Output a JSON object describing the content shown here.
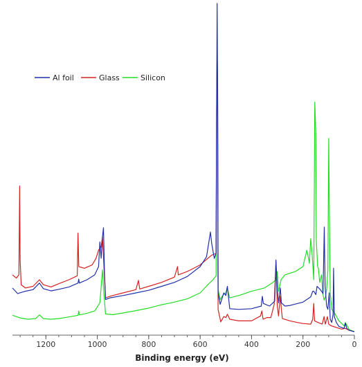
{
  "chart_data": {
    "type": "line",
    "title": "",
    "xlabel": "Binding energy (eV)",
    "ylabel": "",
    "x_reversed": true,
    "xlim": [
      1330,
      0
    ],
    "ylim": [
      0,
      1000
    ],
    "x_ticks": [
      1200,
      1000,
      800,
      600,
      400,
      200,
      0
    ],
    "x_tick_labels": [
      "1200",
      "1000",
      "800",
      "600",
      "400",
      "200",
      "0"
    ],
    "grid": false,
    "legend_position": "top-left",
    "legend": [
      {
        "name": "Al foil",
        "color": "#1f2fa8"
      },
      {
        "name": "Glass",
        "color": "#d62020"
      },
      {
        "name": "Silicon",
        "color": "#22dd22"
      }
    ],
    "series": [
      {
        "name": "Silicon",
        "color": "#22dd22",
        "points": [
          [
            1330,
            52
          ],
          [
            1300,
            44
          ],
          [
            1270,
            40
          ],
          [
            1240,
            42
          ],
          [
            1225,
            53
          ],
          [
            1210,
            42
          ],
          [
            1180,
            40
          ],
          [
            1150,
            42
          ],
          [
            1110,
            47
          ],
          [
            1075,
            52
          ],
          [
            1072,
            65
          ],
          [
            1070,
            53
          ],
          [
            1040,
            58
          ],
          [
            1010,
            65
          ],
          [
            990,
            90
          ],
          [
            980,
            190
          ],
          [
            975,
            125
          ],
          [
            968,
            56
          ],
          [
            940,
            54
          ],
          [
            900,
            59
          ],
          [
            850,
            66
          ],
          [
            800,
            74
          ],
          [
            750,
            84
          ],
          [
            700,
            92
          ],
          [
            650,
            102
          ],
          [
            600,
            120
          ],
          [
            570,
            145
          ],
          [
            550,
            160
          ],
          [
            538,
            172
          ],
          [
            536,
            650
          ],
          [
            534,
            855
          ],
          [
            532,
            760
          ],
          [
            530,
            130
          ],
          [
            522,
            100
          ],
          [
            510,
            115
          ],
          [
            500,
            120
          ],
          [
            495,
            135
          ],
          [
            485,
            105
          ],
          [
            450,
            112
          ],
          [
            400,
            125
          ],
          [
            350,
            135
          ],
          [
            320,
            150
          ],
          [
            305,
            160
          ],
          [
            300,
            185
          ],
          [
            295,
            125
          ],
          [
            285,
            160
          ],
          [
            270,
            175
          ],
          [
            230,
            185
          ],
          [
            200,
            200
          ],
          [
            185,
            250
          ],
          [
            180,
            232
          ],
          [
            175,
            210
          ],
          [
            170,
            285
          ],
          [
            165,
            245
          ],
          [
            158,
            160
          ],
          [
            154,
            700
          ],
          [
            150,
            600
          ],
          [
            148,
            280
          ],
          [
            143,
            200
          ],
          [
            140,
            195
          ],
          [
            135,
            152
          ],
          [
            128,
            175
          ],
          [
            123,
            120
          ],
          [
            118,
            98
          ],
          [
            112,
            110
          ],
          [
            108,
            130
          ],
          [
            103,
            190
          ],
          [
            100,
            590
          ],
          [
            98,
            420
          ],
          [
            94,
            120
          ],
          [
            88,
            70
          ],
          [
            78,
            60
          ],
          [
            60,
            35
          ],
          [
            40,
            20
          ],
          [
            35,
            30
          ],
          [
            20,
            8
          ],
          [
            5,
            4
          ],
          [
            0,
            3
          ]
        ]
      },
      {
        "name": "Glass",
        "color": "#d62020",
        "points": [
          [
            1330,
            175
          ],
          [
            1315,
            165
          ],
          [
            1305,
            175
          ],
          [
            1302,
            445
          ],
          [
            1300,
            220
          ],
          [
            1296,
            145
          ],
          [
            1280,
            135
          ],
          [
            1250,
            140
          ],
          [
            1225,
            160
          ],
          [
            1210,
            145
          ],
          [
            1180,
            138
          ],
          [
            1150,
            148
          ],
          [
            1110,
            160
          ],
          [
            1078,
            172
          ],
          [
            1075,
            302
          ],
          [
            1072,
            200
          ],
          [
            1050,
            195
          ],
          [
            1020,
            205
          ],
          [
            1005,
            225
          ],
          [
            995,
            250
          ],
          [
            985,
            260
          ],
          [
            980,
            290
          ],
          [
            975,
            210
          ],
          [
            968,
            105
          ],
          [
            950,
            110
          ],
          [
            900,
            120
          ],
          [
            850,
            130
          ],
          [
            840,
            158
          ],
          [
            835,
            132
          ],
          [
            800,
            140
          ],
          [
            750,
            152
          ],
          [
            700,
            168
          ],
          [
            688,
            200
          ],
          [
            685,
            175
          ],
          [
            650,
            185
          ],
          [
            600,
            205
          ],
          [
            570,
            225
          ],
          [
            555,
            235
          ],
          [
            538,
            240
          ],
          [
            536,
            650
          ],
          [
            534,
            855
          ],
          [
            532,
            740
          ],
          [
            530,
            70
          ],
          [
            520,
            32
          ],
          [
            508,
            48
          ],
          [
            500,
            45
          ],
          [
            494,
            55
          ],
          [
            485,
            40
          ],
          [
            450,
            35
          ],
          [
            400,
            35
          ],
          [
            365,
            50
          ],
          [
            360,
            65
          ],
          [
            355,
            40
          ],
          [
            340,
            45
          ],
          [
            325,
            45
          ],
          [
            312,
            85
          ],
          [
            305,
            215
          ],
          [
            300,
            80
          ],
          [
            295,
            50
          ],
          [
            288,
            110
          ],
          [
            284,
            70
          ],
          [
            280,
            42
          ],
          [
            250,
            35
          ],
          [
            220,
            30
          ],
          [
            200,
            27
          ],
          [
            170,
            25
          ],
          [
            162,
            40
          ],
          [
            158,
            88
          ],
          [
            155,
            35
          ],
          [
            135,
            28
          ],
          [
            125,
            25
          ],
          [
            118,
            48
          ],
          [
            113,
            25
          ],
          [
            105,
            48
          ],
          [
            100,
            25
          ],
          [
            90,
            20
          ],
          [
            70,
            15
          ],
          [
            50,
            10
          ],
          [
            35,
            12
          ],
          [
            20,
            6
          ],
          [
            5,
            3
          ],
          [
            0,
            2
          ]
        ]
      },
      {
        "name": "Al foil",
        "color": "#1f2fa8",
        "points": [
          [
            1330,
            135
          ],
          [
            1310,
            118
          ],
          [
            1280,
            125
          ],
          [
            1250,
            130
          ],
          [
            1225,
            150
          ],
          [
            1210,
            133
          ],
          [
            1180,
            126
          ],
          [
            1150,
            131
          ],
          [
            1110,
            138
          ],
          [
            1075,
            150
          ],
          [
            1072,
            162
          ],
          [
            1070,
            150
          ],
          [
            1040,
            160
          ],
          [
            1010,
            175
          ],
          [
            995,
            200
          ],
          [
            990,
            275
          ],
          [
            985,
            225
          ],
          [
            980,
            290
          ],
          [
            976,
            318
          ],
          [
            972,
            180
          ],
          [
            968,
            100
          ],
          [
            950,
            105
          ],
          [
            900,
            112
          ],
          [
            850,
            120
          ],
          [
            800,
            128
          ],
          [
            750,
            140
          ],
          [
            700,
            152
          ],
          [
            650,
            170
          ],
          [
            600,
            200
          ],
          [
            575,
            230
          ],
          [
            560,
            305
          ],
          [
            555,
            270
          ],
          [
            545,
            225
          ],
          [
            538,
            240
          ],
          [
            536,
            650
          ],
          [
            534,
            1000
          ],
          [
            532,
            740
          ],
          [
            530,
            120
          ],
          [
            522,
            85
          ],
          [
            508,
            120
          ],
          [
            500,
            112
          ],
          [
            494,
            140
          ],
          [
            485,
            72
          ],
          [
            450,
            70
          ],
          [
            400,
            72
          ],
          [
            362,
            80
          ],
          [
            358,
            110
          ],
          [
            354,
            88
          ],
          [
            330,
            80
          ],
          [
            310,
            95
          ],
          [
            305,
            220
          ],
          [
            300,
            130
          ],
          [
            295,
            90
          ],
          [
            288,
            135
          ],
          [
            284,
            90
          ],
          [
            270,
            80
          ],
          [
            250,
            82
          ],
          [
            220,
            88
          ],
          [
            200,
            92
          ],
          [
            170,
            108
          ],
          [
            162,
            125
          ],
          [
            158,
            125
          ],
          [
            150,
            115
          ],
          [
            145,
            140
          ],
          [
            135,
            132
          ],
          [
            128,
            125
          ],
          [
            122,
            118
          ],
          [
            117,
            320
          ],
          [
            114,
            140
          ],
          [
            108,
            80
          ],
          [
            103,
            70
          ],
          [
            98,
            120
          ],
          [
            94,
            40
          ],
          [
            88,
            30
          ],
          [
            83,
            55
          ],
          [
            81,
            195
          ],
          [
            78,
            48
          ],
          [
            70,
            30
          ],
          [
            60,
            18
          ],
          [
            40,
            12
          ],
          [
            35,
            28
          ],
          [
            30,
            12
          ],
          [
            20,
            6
          ],
          [
            5,
            3
          ],
          [
            0,
            2
          ]
        ]
      }
    ]
  }
}
